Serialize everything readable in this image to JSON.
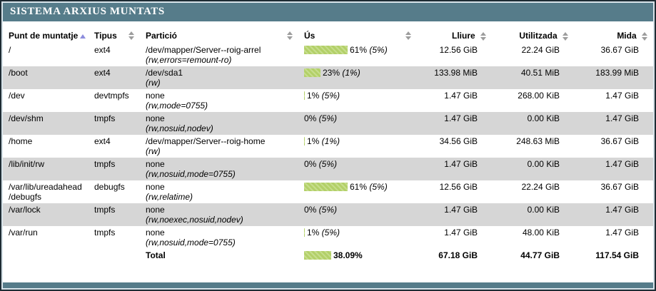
{
  "title": "SISTEMA ARXIUS MUNTATS",
  "colors": {
    "outer_border": "#1e2c34",
    "inner_border": "#d8e4ea",
    "header_bg": "#567c8a",
    "row_alt": "#d6d6d6",
    "bar_fill": "#b3d068",
    "bar_stripe": "#c6dd8d",
    "sort_active_arrow": "#8d8ddd",
    "sort_inactive_arrow": "#9d9d9d"
  },
  "table": {
    "columns": [
      {
        "key": "mount",
        "label": "Punt de muntatje",
        "sorted": "asc"
      },
      {
        "key": "type",
        "label": "Tipus"
      },
      {
        "key": "partition",
        "label": "Partició"
      },
      {
        "key": "usage",
        "label": "Ús"
      },
      {
        "key": "free",
        "label": "Lliure"
      },
      {
        "key": "used",
        "label": "Utilitzada"
      },
      {
        "key": "size",
        "label": "Mida"
      }
    ],
    "rows": [
      {
        "mount": "/",
        "type": "ext4",
        "partition": "/dev/mapper/Server--roig-arrel",
        "options": "(rw,errors=remount-ro)",
        "usage_pct": 61,
        "usage_label": "61%",
        "usage_note": "(5%)",
        "free": "12.56 GiB",
        "used": "22.24 GiB",
        "size": "36.67 GiB"
      },
      {
        "mount": "/boot",
        "type": "ext4",
        "partition": "/dev/sda1",
        "options": "(rw)",
        "usage_pct": 23,
        "usage_label": "23%",
        "usage_note": "(1%)",
        "free": "133.98 MiB",
        "used": "40.51 MiB",
        "size": "183.99 MiB"
      },
      {
        "mount": "/dev",
        "type": "devtmpfs",
        "partition": "none",
        "options": "(rw,mode=0755)",
        "usage_pct": 1,
        "usage_label": "1%",
        "usage_note": "(5%)",
        "free": "1.47 GiB",
        "used": "268.00 KiB",
        "size": "1.47 GiB"
      },
      {
        "mount": "/dev/shm",
        "type": "tmpfs",
        "partition": "none",
        "options": "(rw,nosuid,nodev)",
        "usage_pct": 0,
        "usage_label": "0%",
        "usage_note": "(5%)",
        "free": "1.47 GiB",
        "used": "0.00 KiB",
        "size": "1.47 GiB"
      },
      {
        "mount": "/home",
        "type": "ext4",
        "partition": "/dev/mapper/Server--roig-home",
        "options": "(rw)",
        "usage_pct": 1,
        "usage_label": "1%",
        "usage_note": "(1%)",
        "free": "34.56 GiB",
        "used": "248.63 MiB",
        "size": "36.67 GiB"
      },
      {
        "mount": "/lib/init/rw",
        "type": "tmpfs",
        "partition": "none",
        "options": "(rw,nosuid,mode=0755)",
        "usage_pct": 0,
        "usage_label": "0%",
        "usage_note": "(5%)",
        "free": "1.47 GiB",
        "used": "0.00 KiB",
        "size": "1.47 GiB"
      },
      {
        "mount": "/var/lib/ureadahead/debugfs",
        "type": "debugfs",
        "partition": "none",
        "options": "(rw,relatime)",
        "usage_pct": 61,
        "usage_label": "61%",
        "usage_note": "(5%)",
        "free": "12.56 GiB",
        "used": "22.24 GiB",
        "size": "36.67 GiB"
      },
      {
        "mount": "/var/lock",
        "type": "tmpfs",
        "partition": "none",
        "options": "(rw,noexec,nosuid,nodev)",
        "usage_pct": 0,
        "usage_label": "0%",
        "usage_note": "(5%)",
        "free": "1.47 GiB",
        "used": "0.00 KiB",
        "size": "1.47 GiB"
      },
      {
        "mount": "/var/run",
        "type": "tmpfs",
        "partition": "none",
        "options": "(rw,nosuid,mode=0755)",
        "usage_pct": 1,
        "usage_label": "1%",
        "usage_note": "(5%)",
        "free": "1.47 GiB",
        "used": "48.00 KiB",
        "size": "1.47 GiB"
      }
    ],
    "total": {
      "label": "Total",
      "usage_pct": 38.09,
      "usage_label": "38.09%",
      "usage_note": "",
      "free": "67.18 GiB",
      "used": "44.77 GiB",
      "size": "117.54 GiB"
    }
  }
}
